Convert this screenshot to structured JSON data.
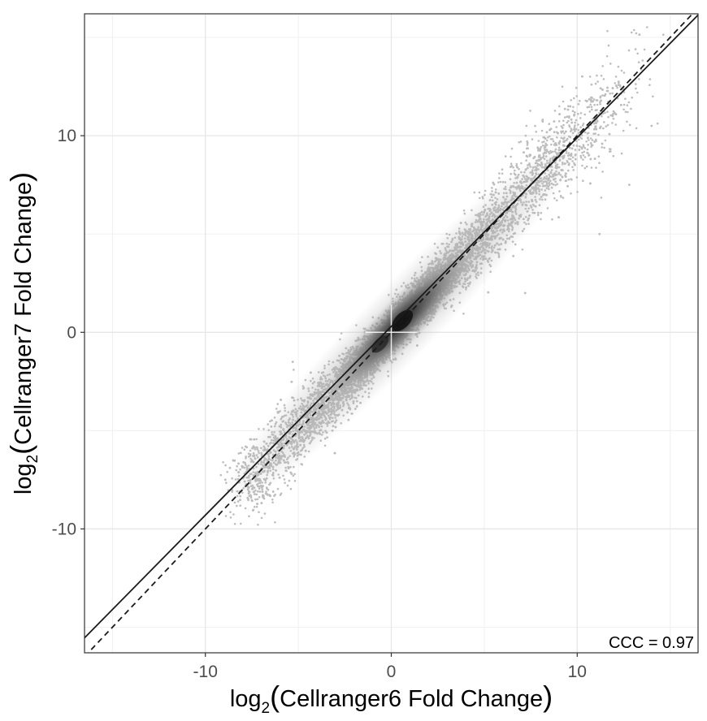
{
  "chart_data": {
    "type": "scatter",
    "title": "",
    "xlabel": {
      "prefix": "log",
      "subscript": "2",
      "open": "(",
      "text": "Cellranger6 Fold Change",
      "close": ")"
    },
    "ylabel": {
      "prefix": "log",
      "subscript": "2",
      "open": "(",
      "text": "Cellranger7 Fold Change",
      "close": ")"
    },
    "xlim": [
      -16.5,
      16.5
    ],
    "ylim": [
      -16.3,
      16.2
    ],
    "x_ticks": [
      -10,
      0,
      10
    ],
    "y_ticks": [
      -10,
      0,
      10
    ],
    "x_tick_labels": [
      "-10",
      "0",
      "10"
    ],
    "y_tick_labels": [
      "-10",
      "0",
      "10"
    ],
    "grid": true,
    "theme": "bw",
    "point_color": "#bdbdbd",
    "density_color_high": "#111111",
    "annotation": {
      "text": "CCC = 0.97",
      "position": "bottom-right"
    },
    "reference_lines": [
      {
        "name": "fit",
        "style": "solid",
        "color": "#1a1a1a",
        "intercept": 0.3,
        "slope": 0.96
      },
      {
        "name": "identity",
        "style": "dashed",
        "color": "#1a1a1a",
        "intercept": 0,
        "slope": 1
      }
    ],
    "cloud": {
      "approx_points": 20000,
      "x_range": [
        -8,
        14
      ],
      "main_axis_slope": 1,
      "density_peak": {
        "x": 0.5,
        "y": 0.5
      },
      "spread_sd": 0.75
    },
    "notable_points": [
      {
        "x": 14,
        "y": 10.5
      },
      {
        "x": 11.2,
        "y": 5
      },
      {
        "x": 12.8,
        "y": 7.5
      },
      {
        "x": 7.2,
        "y": 2
      },
      {
        "x": -7.3,
        "y": -8.5
      },
      {
        "x": -5.3,
        "y": -1.5
      }
    ]
  }
}
